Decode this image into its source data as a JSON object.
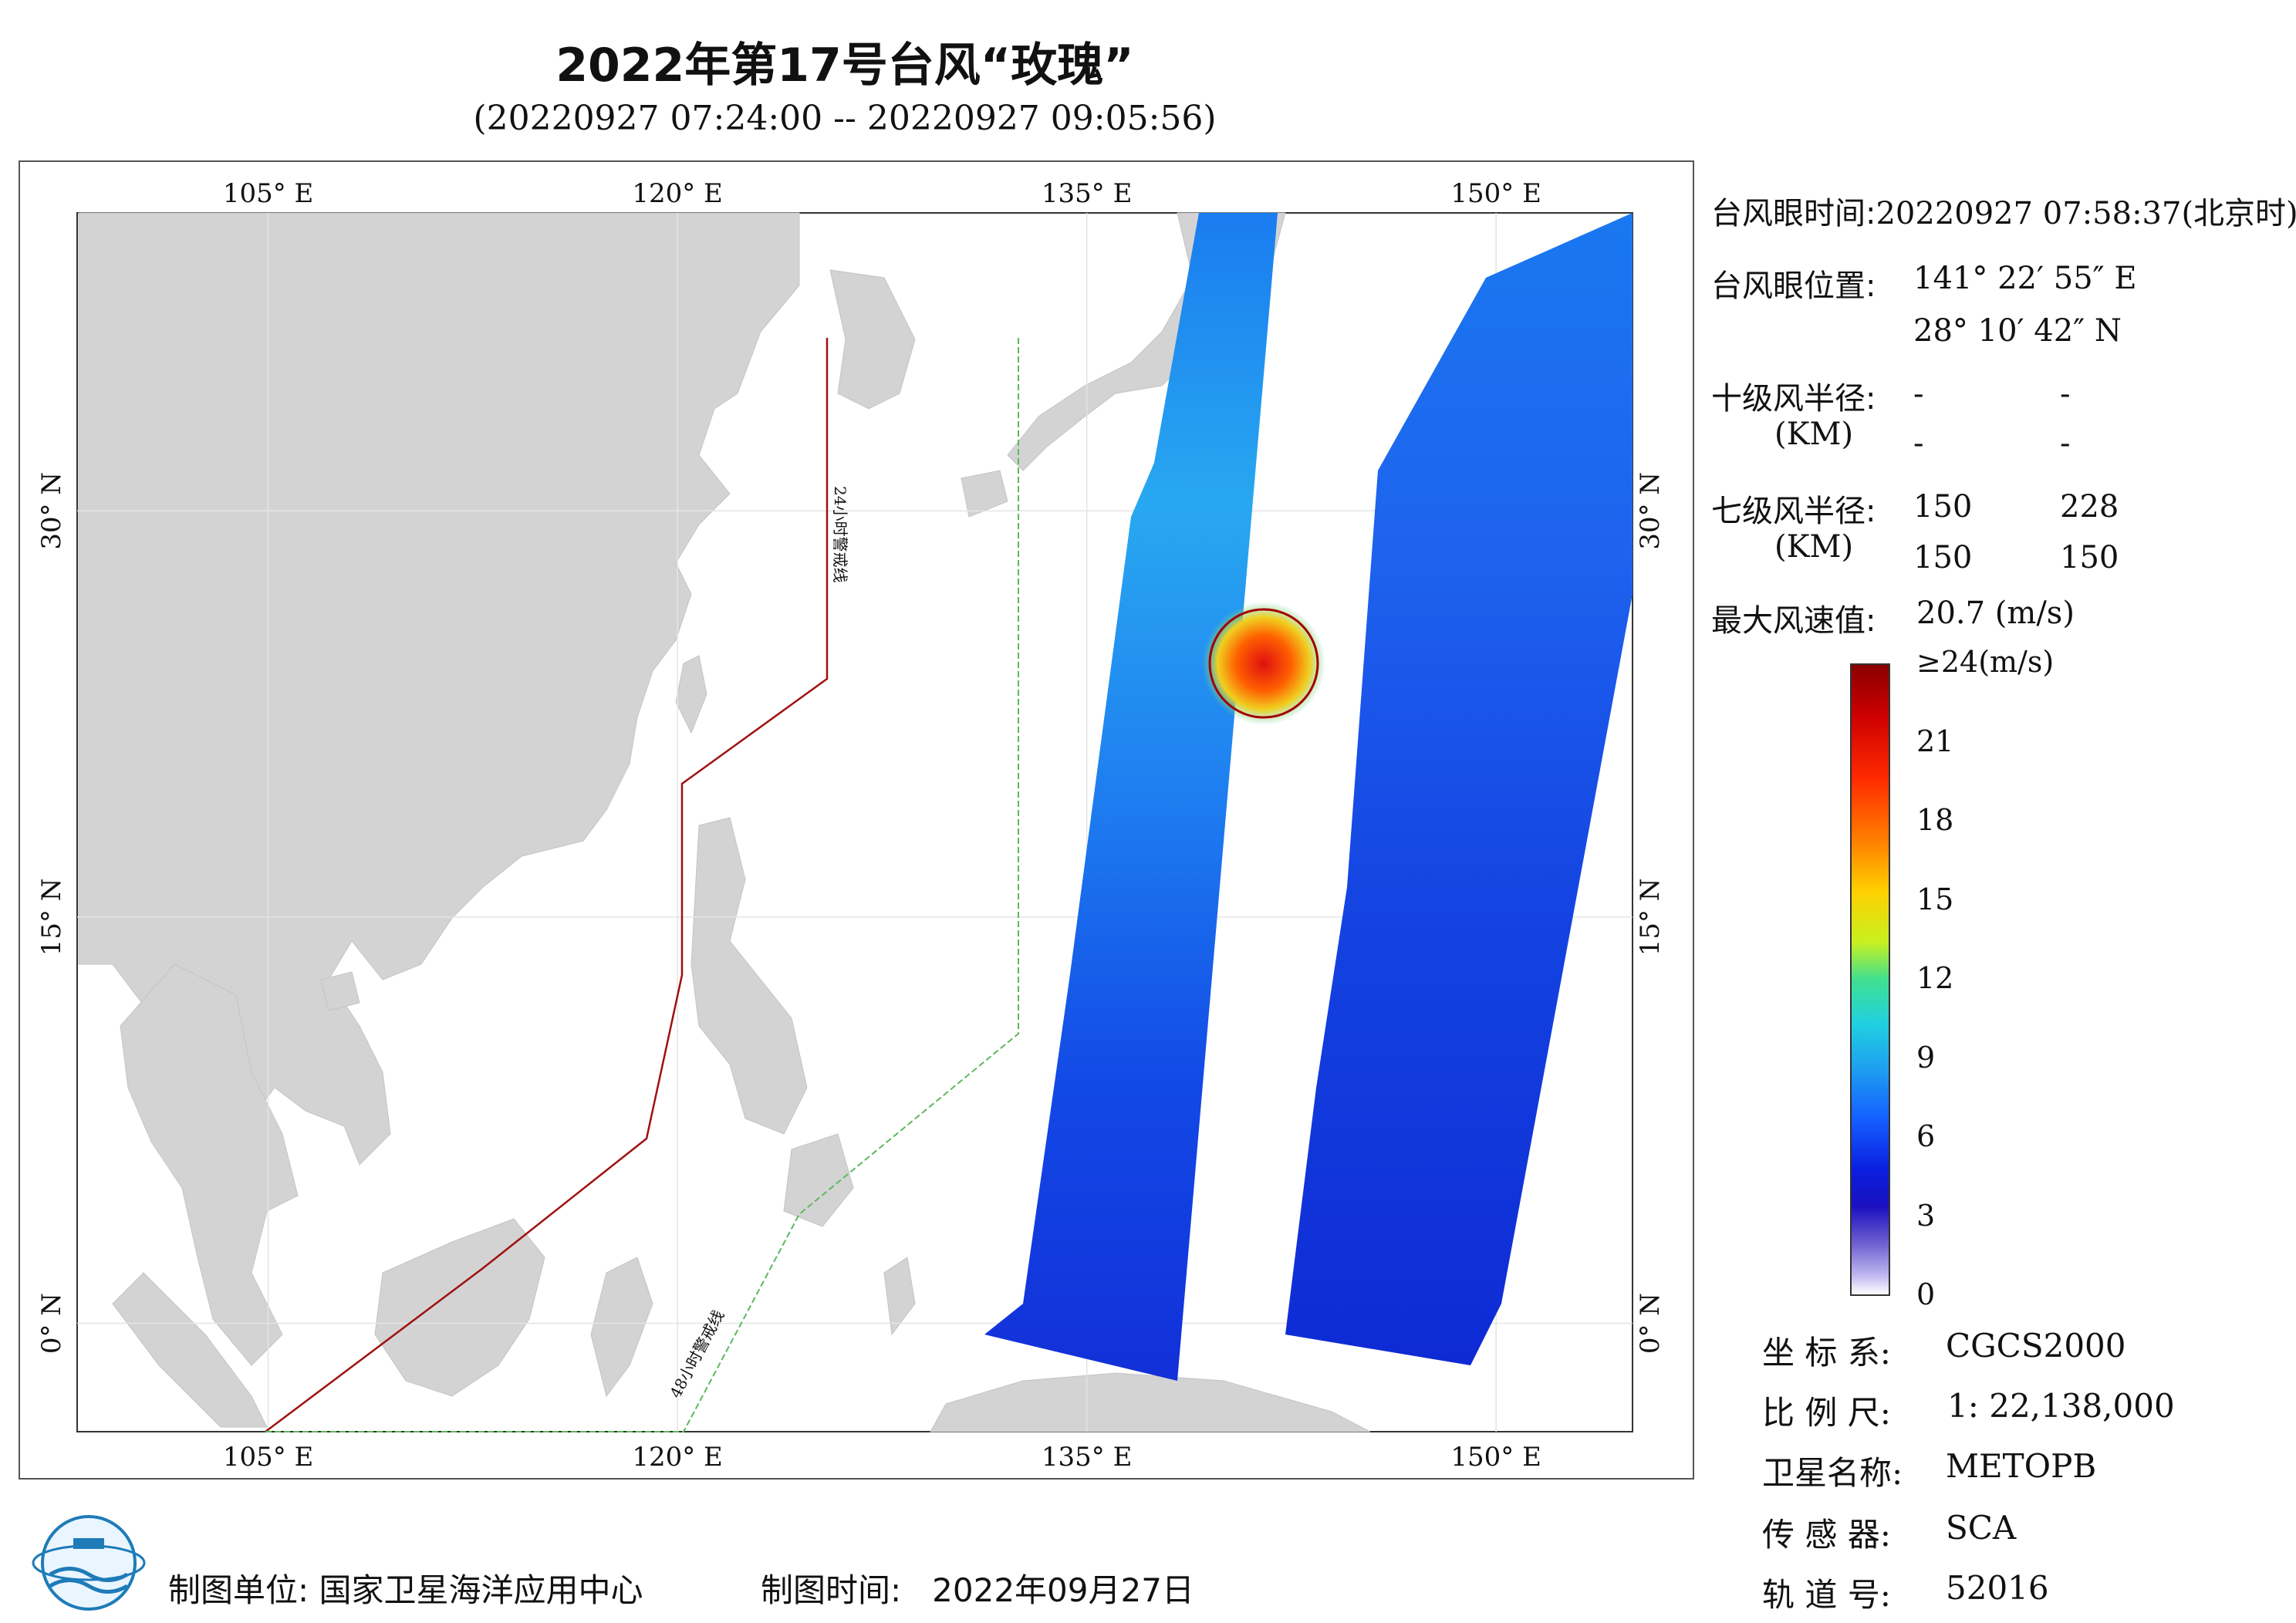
{
  "title": "2022年第17号台风“玫瑰”",
  "subtitle": "(20220927 07:24:00 -- 20220927 09:05:56)",
  "map": {
    "lon_labels": [
      "105° E",
      "120° E",
      "135° E",
      "150° E"
    ],
    "lat_labels": [
      "30° N",
      "15° N",
      "0° N"
    ],
    "lon_values": [
      105,
      120,
      135,
      150
    ],
    "lat_values": [
      30,
      15,
      0
    ],
    "lon_range": [
      98,
      155
    ],
    "lat_range": [
      -4,
      41
    ],
    "warning_line_24h": "24小时警戒线",
    "warning_line_48h": "48小时警戒线",
    "colors": {
      "land": "#d3d3d3",
      "ocean": "#ffffff",
      "warn24": "#a01010",
      "warn48": "#5cb85c"
    }
  },
  "info": {
    "eye_time_label": "台风眼时间:",
    "eye_time_value": "20220927 07:58:37(北京时)",
    "eye_pos_label": "台风眼位置:",
    "eye_lon": "141° 22′ 55″ E",
    "eye_lat": "28° 10′ 42″ N",
    "r10_label": "十级风半径:",
    "r10_unit": "(KM)",
    "r10_values": [
      "-",
      "-",
      "-",
      "-"
    ],
    "r7_label": "七级风半径:",
    "r7_unit": "(KM)",
    "r7_values": [
      "150",
      "228",
      "150",
      "150"
    ],
    "max_wind_label": "最大风速值:",
    "max_wind_value": "20.7  (m/s)"
  },
  "colorbar": {
    "ticks": [
      "≥24(m/s)",
      "21",
      "18",
      "15",
      "12",
      "9",
      "6",
      "3",
      "0"
    ],
    "max": 24,
    "min": 0
  },
  "meta": {
    "crs_label": "坐 标 系:",
    "crs_value": "CGCS2000",
    "scale_label": "比 例 尺:",
    "scale_value": "1: 22,138,000",
    "sat_label": "卫星名称:",
    "sat_value": "METOPB",
    "sensor_label": "传 感 器:",
    "sensor_value": "SCA",
    "orbit_label": "轨 道 号:",
    "orbit_value": "52016"
  },
  "footer": {
    "unit_label": "制图单位:",
    "unit_value": "国家卫星海洋应用中心",
    "time_label": "制图时间:",
    "time_value": "2022年09月27日"
  }
}
